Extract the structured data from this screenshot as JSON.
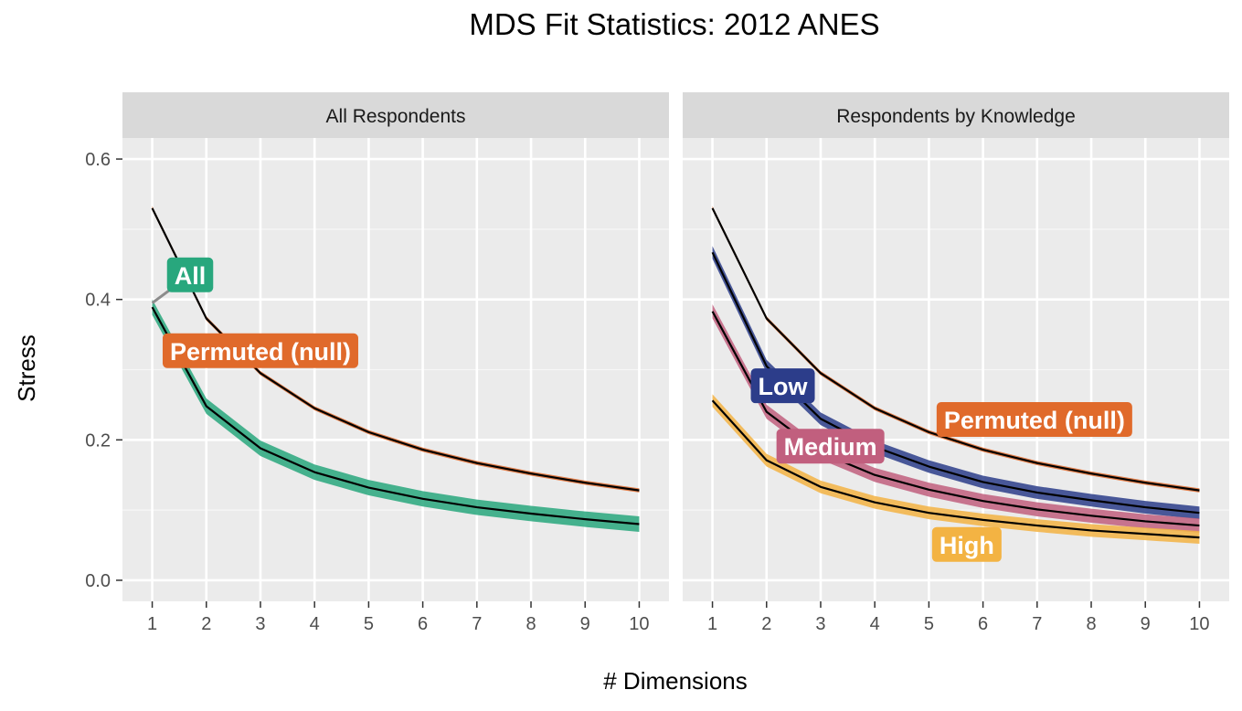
{
  "chart_data": {
    "type": "line",
    "title": "MDS Fit Statistics: 2012 ANES",
    "xlabel": "# Dimensions",
    "ylabel": "Stress",
    "x": [
      1,
      2,
      3,
      4,
      5,
      6,
      7,
      8,
      9,
      10
    ],
    "xlim": [
      0.45,
      10.55
    ],
    "ylim": [
      -0.03,
      0.63
    ],
    "y_ticks": [
      {
        "value": 0.0,
        "label": "0.0"
      },
      {
        "value": 0.2,
        "label": "0.2"
      },
      {
        "value": 0.4,
        "label": "0.4"
      },
      {
        "value": 0.6,
        "label": "0.6"
      }
    ],
    "x_ticks": [
      {
        "value": 1,
        "label": "1"
      },
      {
        "value": 2,
        "label": "2"
      },
      {
        "value": 3,
        "label": "3"
      },
      {
        "value": 4,
        "label": "4"
      },
      {
        "value": 5,
        "label": "5"
      },
      {
        "value": 6,
        "label": "6"
      },
      {
        "value": 7,
        "label": "7"
      },
      {
        "value": 8,
        "label": "8"
      },
      {
        "value": 9,
        "label": "9"
      },
      {
        "value": 10,
        "label": "10"
      }
    ],
    "grid": true,
    "legend": "none",
    "panels": [
      {
        "strip": "All Respondents",
        "series": [
          {
            "name": "Permuted (null)",
            "color": "#e06a2b",
            "values": [
              0.53,
              0.373,
              0.295,
              0.245,
              0.211,
              0.186,
              0.167,
              0.152,
              0.139,
              0.128
            ],
            "band": 0.003
          },
          {
            "name": "All",
            "color": "#28a77d",
            "values": [
              0.389,
              0.248,
              0.188,
              0.154,
              0.132,
              0.116,
              0.104,
              0.095,
              0.087,
              0.08
            ],
            "band": 0.011
          }
        ],
        "labels": [
          {
            "text": "All",
            "color": "#28a77d",
            "x": 1.7,
            "y": 0.435,
            "from": [
              1.0,
              0.395
            ]
          },
          {
            "text": "Permuted (null)",
            "color": "#e06a2b",
            "x": 3.0,
            "y": 0.327
          }
        ]
      },
      {
        "strip": "Respondents by Knowledge",
        "series": [
          {
            "name": "Permuted (null)",
            "color": "#e06a2b",
            "values": [
              0.53,
              0.373,
              0.295,
              0.245,
              0.211,
              0.186,
              0.167,
              0.152,
              0.139,
              0.128
            ],
            "band": 0.003
          },
          {
            "name": "Low",
            "color": "#2c3d8a",
            "values": [
              0.467,
              0.305,
              0.23,
              0.19,
              0.162,
              0.14,
              0.125,
              0.114,
              0.104,
              0.096
            ],
            "band": 0.009
          },
          {
            "name": "Medium",
            "color": "#c15f7e",
            "values": [
              0.383,
              0.24,
              0.182,
              0.15,
              0.129,
              0.113,
              0.101,
              0.092,
              0.084,
              0.078
            ],
            "band": 0.01
          },
          {
            "name": "High",
            "color": "#f3b343",
            "values": [
              0.256,
              0.171,
              0.133,
              0.111,
              0.096,
              0.086,
              0.078,
              0.071,
              0.066,
              0.061
            ],
            "band": 0.009
          }
        ],
        "labels": [
          {
            "text": "Low",
            "color": "#2c3d8a",
            "x": 2.3,
            "y": 0.277
          },
          {
            "text": "Permuted (null)",
            "color": "#e06a2b",
            "x": 6.95,
            "y": 0.229
          },
          {
            "text": "Medium",
            "color": "#c15f7e",
            "x": 3.18,
            "y": 0.191
          },
          {
            "text": "High",
            "color": "#f3b343",
            "x": 5.7,
            "y": 0.051
          }
        ]
      }
    ]
  }
}
